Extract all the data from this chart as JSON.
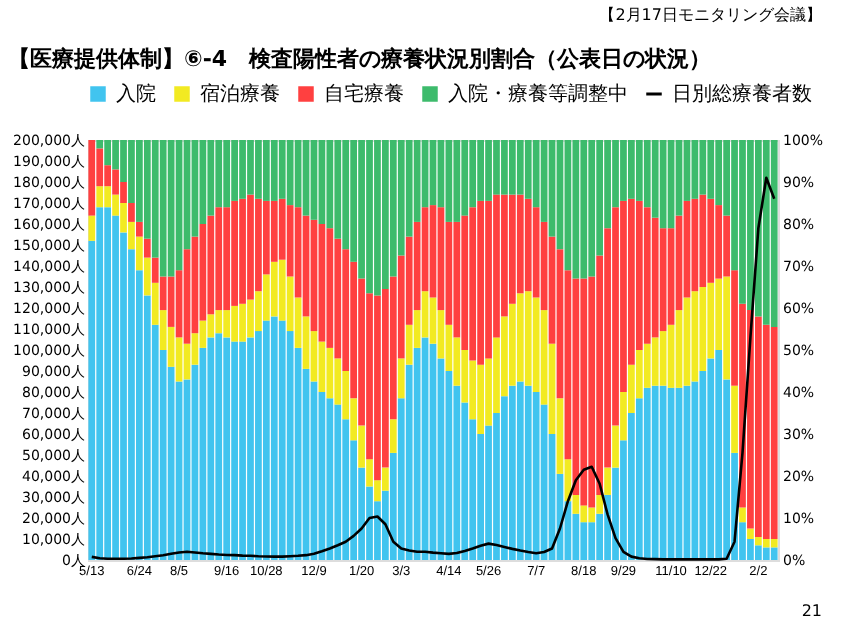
{
  "chart_data": {
    "type": "bar",
    "stacked": true,
    "title": "【医療提供体制】⑥-4　検査陽性者の療養状況別割合（公表日の状況）",
    "annotations": [
      "【2月17日モニタリング会議】",
      "21"
    ],
    "categories": [
      "5/13",
      null,
      null,
      null,
      null,
      null,
      "6/24",
      null,
      null,
      null,
      null,
      "8/5",
      null,
      null,
      null,
      null,
      null,
      "9/16",
      null,
      null,
      null,
      null,
      "10/28",
      null,
      null,
      null,
      null,
      null,
      "12/9",
      null,
      null,
      null,
      null,
      null,
      "1/20",
      null,
      null,
      null,
      null,
      "3/3",
      null,
      null,
      null,
      null,
      null,
      "4/14",
      null,
      null,
      null,
      null,
      "5/26",
      null,
      null,
      null,
      null,
      null,
      "7/7",
      null,
      null,
      null,
      null,
      null,
      "8/18",
      null,
      null,
      null,
      null,
      "9/29",
      null,
      null,
      null,
      null,
      null,
      "11/10",
      null,
      null,
      null,
      null,
      "12/22",
      null,
      null,
      null,
      null,
      null,
      "2/2",
      null,
      null
    ],
    "series": [
      {
        "name": "入院",
        "color": "#41c4ef",
        "axis": "y2",
        "values": [
          76,
          84,
          84,
          82,
          78,
          74,
          69,
          63,
          56,
          50,
          46,
          42.5,
          43,
          46.5,
          50.5,
          53,
          54,
          53,
          52,
          52,
          53,
          54.5,
          57,
          58,
          57,
          54.5,
          50.5,
          45.5,
          42.5,
          40,
          38.5,
          37,
          33.5,
          28.5,
          22,
          17.5,
          14,
          16.5,
          25.5,
          38.5,
          46.5,
          50.5,
          53,
          51.5,
          48,
          45,
          41.5,
          37.5,
          33.5,
          30,
          32,
          35,
          39,
          41.5,
          42.5,
          41.5,
          40,
          37,
          30,
          20.5,
          14,
          11,
          9,
          9,
          11,
          15.5,
          22,
          28.5,
          35,
          38.5,
          41,
          41.5,
          41.5,
          41,
          41,
          41.5,
          42.5,
          45,
          48,
          50,
          43,
          25.5,
          9,
          5,
          3.5,
          3,
          3
        ]
      },
      {
        "name": "宿泊療養",
        "color": "#f2ea22",
        "axis": "y2",
        "values": [
          6,
          5,
          5,
          5,
          7,
          6.5,
          8,
          9,
          10,
          9.5,
          9.5,
          10.5,
          8.5,
          7.5,
          6.5,
          5.5,
          5.5,
          6.5,
          8.5,
          9,
          9,
          9.5,
          11,
          13,
          14.5,
          13,
          12,
          12.5,
          12,
          12,
          12,
          11,
          11.5,
          10,
          10,
          6.5,
          5,
          5.5,
          8,
          9.5,
          9.5,
          9,
          11,
          11,
          11.5,
          11,
          11.5,
          12.5,
          14,
          16.5,
          16,
          18,
          19,
          19.5,
          21,
          22.5,
          22.5,
          22.5,
          21.5,
          18,
          10,
          4.5,
          4,
          3.5,
          4.5,
          6.5,
          10,
          11.5,
          11.5,
          11.5,
          10.5,
          11.5,
          13,
          15,
          18.5,
          21,
          21.5,
          20,
          18,
          17,
          24.5,
          16,
          3.5,
          2.5,
          2,
          2,
          2
        ]
      },
      {
        "name": "自宅療養",
        "color": "#ff4040",
        "axis": "y2",
        "values": [
          18,
          9,
          5,
          6,
          5,
          4.5,
          3.5,
          4.5,
          6,
          8,
          12,
          16,
          22.5,
          23,
          23,
          23.5,
          24.5,
          24.5,
          25,
          25,
          25,
          22,
          17.5,
          14.5,
          14.5,
          17,
          21.5,
          24,
          26.5,
          28,
          28.5,
          28.5,
          29,
          32.5,
          35,
          39.5,
          44,
          42.5,
          34,
          24.5,
          21,
          21,
          20,
          22,
          24.5,
          24.5,
          27.5,
          32,
          36.5,
          39,
          37.5,
          34,
          29,
          26,
          23.5,
          22,
          21.5,
          21,
          25.5,
          35.5,
          45,
          51.5,
          54,
          55,
          57,
          57,
          52,
          45.5,
          39.5,
          35.5,
          32.5,
          28.5,
          24.5,
          23,
          22.5,
          23,
          22,
          22,
          20,
          17.5,
          14.5,
          27.5,
          48.5,
          52,
          52.5,
          51,
          50.5
        ]
      },
      {
        "name": "入院・療養等調整中",
        "color": "#3dbb6c",
        "axis": "y2",
        "values": [
          0,
          2,
          6,
          7,
          10,
          15,
          19.5,
          23.5,
          28,
          32.5,
          32.5,
          31,
          26,
          23,
          20,
          18,
          16,
          16,
          14.5,
          14,
          13,
          14,
          14.5,
          14.5,
          14,
          15.5,
          16,
          18,
          19,
          20,
          21,
          23.5,
          26,
          29,
          33,
          36.5,
          37,
          35.5,
          32.5,
          27.5,
          23,
          19.5,
          16,
          15.5,
          16,
          19.5,
          19.5,
          18,
          16,
          14.5,
          14.5,
          13,
          13,
          13,
          13,
          14,
          16,
          19.5,
          23,
          26,
          31,
          33,
          33,
          32.5,
          27.5,
          21,
          16,
          14.5,
          14,
          14.5,
          16,
          18.5,
          21,
          21,
          18,
          14.5,
          14,
          13,
          14,
          15.5,
          18,
          31,
          39,
          40.5,
          42,
          44,
          44.5
        ]
      },
      {
        "name": "日別総療養者数",
        "type": "line",
        "color": "#000000",
        "axis": "y",
        "values": [
          1500,
          800,
          600,
          600,
          600,
          700,
          1000,
          1300,
          1800,
          2300,
          3000,
          3600,
          3900,
          3600,
          3200,
          2900,
          2600,
          2400,
          2300,
          2100,
          2000,
          1800,
          1700,
          1600,
          1600,
          1800,
          2000,
          2300,
          3000,
          4200,
          5500,
          7000,
          8700,
          11500,
          15000,
          20000,
          20700,
          17000,
          8700,
          5500,
          4500,
          3900,
          3900,
          3500,
          3200,
          2900,
          3300,
          4300,
          5500,
          6800,
          7800,
          7100,
          6200,
          5300,
          4500,
          3800,
          3200,
          3800,
          5500,
          15000,
          28000,
          38000,
          43000,
          44400,
          36300,
          21700,
          10400,
          3900,
          1600,
          800,
          500,
          400,
          300,
          300,
          300,
          300,
          300,
          300,
          300,
          300,
          600,
          8700,
          51000,
          106000,
          158000,
          182000,
          172000
        ]
      }
    ],
    "ylim": [
      0,
      200000
    ],
    "yticks": [
      {
        "value": 0,
        "label": "0人"
      },
      {
        "value": 10000,
        "label": "10,000人"
      },
      {
        "value": 20000,
        "label": "20,000人"
      },
      {
        "value": 30000,
        "label": "30,000人"
      },
      {
        "value": 40000,
        "label": "40,000人"
      },
      {
        "value": 50000,
        "label": "50,000人"
      },
      {
        "value": 60000,
        "label": "60,000人"
      },
      {
        "value": 70000,
        "label": "70,000人"
      },
      {
        "value": 80000,
        "label": "80,000人"
      },
      {
        "value": 90000,
        "label": "90,000人"
      },
      {
        "value": 100000,
        "label": "100,000人"
      },
      {
        "value": 110000,
        "label": "110,000人"
      },
      {
        "value": 120000,
        "label": "120,000人"
      },
      {
        "value": 130000,
        "label": "130,000人"
      },
      {
        "value": 140000,
        "label": "140,000人"
      },
      {
        "value": 150000,
        "label": "150,000人"
      },
      {
        "value": 160000,
        "label": "160,000人"
      },
      {
        "value": 170000,
        "label": "170,000人"
      },
      {
        "value": 180000,
        "label": "180,000人"
      },
      {
        "value": 190000,
        "label": "190,000人"
      },
      {
        "value": 200000,
        "label": "200,000人"
      }
    ],
    "y2lim": [
      0,
      100
    ],
    "y2ticks": [
      {
        "value": 0,
        "label": "0%"
      },
      {
        "value": 10,
        "label": "10%"
      },
      {
        "value": 20,
        "label": "20%"
      },
      {
        "value": 30,
        "label": "30%"
      },
      {
        "value": 40,
        "label": "40%"
      },
      {
        "value": 50,
        "label": "50%"
      },
      {
        "value": 60,
        "label": "60%"
      },
      {
        "value": 70,
        "label": "70%"
      },
      {
        "value": 80,
        "label": "80%"
      },
      {
        "value": 90,
        "label": "90%"
      },
      {
        "value": 100,
        "label": "100%"
      }
    ],
    "legend": "top"
  }
}
